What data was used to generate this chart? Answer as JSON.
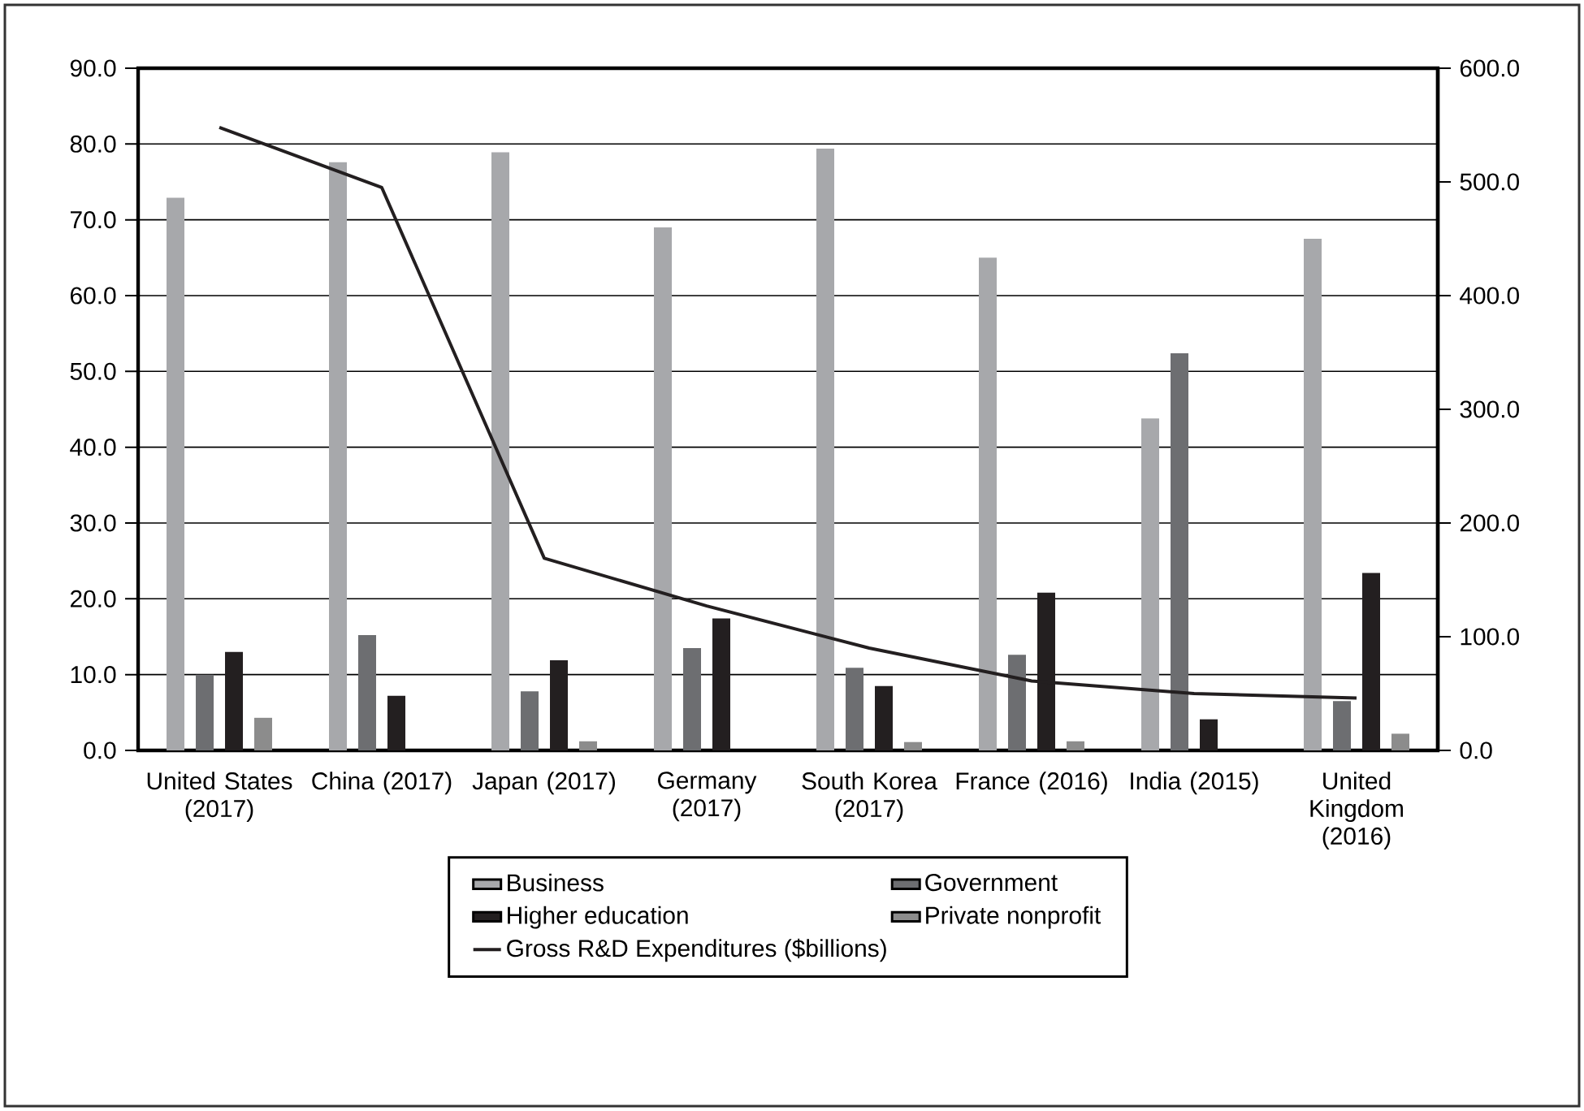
{
  "chart_data": {
    "type": "bar",
    "categories": [
      "United States (2017)",
      "China (2017)",
      "Japan (2017)",
      "Germany (2017)",
      "South Korea (2017)",
      "France (2016)",
      "India (2015)",
      "United Kingdom (2016)"
    ],
    "series": [
      {
        "name": "Business",
        "color": "#a7a8ab",
        "values": [
          72.9,
          77.6,
          78.9,
          69.0,
          79.4,
          65.0,
          43.8,
          67.5
        ]
      },
      {
        "name": "Government",
        "color": "#6d6e71",
        "values": [
          10.0,
          15.2,
          7.8,
          13.5,
          10.9,
          12.6,
          52.4,
          6.5
        ]
      },
      {
        "name": "Higher education",
        "color": "#231f20",
        "values": [
          13.0,
          7.2,
          11.9,
          17.4,
          8.5,
          20.8,
          4.1,
          23.4
        ]
      },
      {
        "name": "Private nonprofit",
        "color": "#8c8c8c",
        "values": [
          4.3,
          null,
          1.2,
          null,
          1.1,
          1.2,
          null,
          2.2
        ]
      },
      {
        "name": "Gross R&D Expenditures ($billions)",
        "type": "line",
        "axis": "y2",
        "color": "#231f20",
        "values": [
          548,
          495,
          169,
          127,
          90,
          61,
          50,
          46
        ]
      }
    ],
    "ylim": [
      0,
      90
    ],
    "yticks": [
      {
        "value": 0,
        "label": "0.0"
      },
      {
        "value": 10,
        "label": "10.0"
      },
      {
        "value": 20,
        "label": "20.0"
      },
      {
        "value": 30,
        "label": "30.0"
      },
      {
        "value": 40,
        "label": "40.0"
      },
      {
        "value": 50,
        "label": "50.0"
      },
      {
        "value": 60,
        "label": "60.0"
      },
      {
        "value": 70,
        "label": "70.0"
      },
      {
        "value": 80,
        "label": "80.0"
      },
      {
        "value": 90,
        "label": "90.0"
      }
    ],
    "y2lim": [
      0,
      600
    ],
    "y2ticks": [
      {
        "value": 0,
        "label": "0.0"
      },
      {
        "value": 100,
        "label": "100.0"
      },
      {
        "value": 200,
        "label": "200.0"
      },
      {
        "value": 300,
        "label": "300.0"
      },
      {
        "value": 400,
        "label": "400.0"
      },
      {
        "value": 500,
        "label": "500.0"
      },
      {
        "value": 600,
        "label": "600.0"
      }
    ],
    "grid": "y",
    "legend": "bottom"
  }
}
